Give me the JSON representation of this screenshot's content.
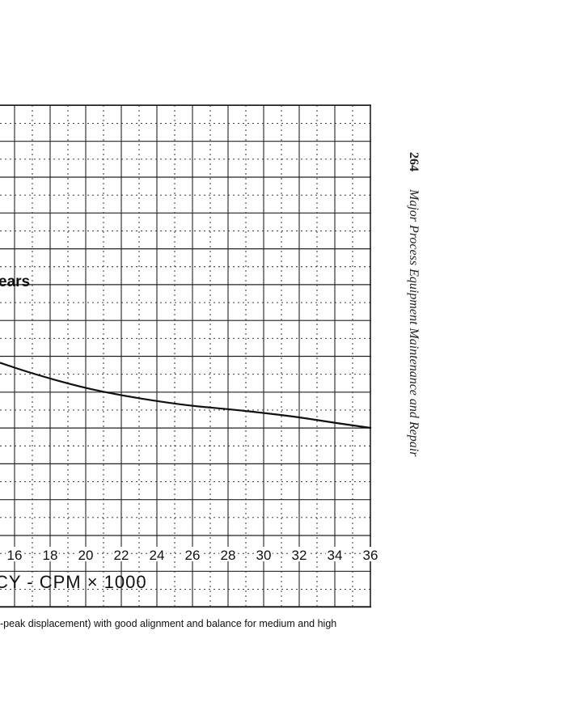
{
  "chart_data": {
    "type": "line",
    "title": "",
    "series_label_partial": "ears",
    "xlabel": "CY - CPM × 1000",
    "ylabel": "",
    "x_ticks": [
      "16",
      "18",
      "20",
      "22",
      "24",
      "26",
      "28",
      "30",
      "32",
      "34",
      "36"
    ],
    "xlim": [
      15.2,
      36
    ],
    "ylim_grid_units": [
      -2,
      12
    ],
    "grid": true,
    "series": [
      {
        "name": "ears",
        "x": [
          15.18,
          17.0,
          19.73,
          22.0,
          24.27,
          26.09,
          28.14,
          30.18,
          32.0,
          34.05,
          36.05
        ],
        "y": [
          4.82,
          4.52,
          4.14,
          3.91,
          3.73,
          3.61,
          3.52,
          3.41,
          3.3,
          3.14,
          3.0
        ]
      }
    ]
  },
  "caption": "-peak displacement) with good alignment and balance for medium and high",
  "running_head": {
    "page_number": "264",
    "title": "Major Process Equipment Maintenance and Repair"
  },
  "colors": {
    "ink": "#111111",
    "paper": "#ffffff"
  }
}
